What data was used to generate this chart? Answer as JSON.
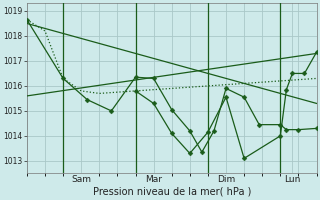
{
  "background_color": "#ceeaea",
  "grid_color": "#aac8c8",
  "line_color": "#1a5c1a",
  "xlabel": "Pression niveau de la mer( hPa )",
  "ylim": [
    1012.5,
    1019.3
  ],
  "yticks": [
    1013,
    1014,
    1015,
    1016,
    1017,
    1018,
    1019
  ],
  "xlim": [
    0,
    96
  ],
  "day_lines": [
    12,
    36,
    60,
    84
  ],
  "day_labels": [
    {
      "label": "Sam",
      "x": 18
    },
    {
      "label": "Mar",
      "x": 42
    },
    {
      "label": "Dim",
      "x": 66
    },
    {
      "label": "Lun",
      "x": 88
    }
  ],
  "line1": {
    "x": [
      0,
      6,
      12,
      18,
      24,
      30,
      36,
      42,
      48,
      54,
      60,
      66,
      72,
      78,
      84,
      90,
      96
    ],
    "y": [
      1018.65,
      1018.2,
      1016.3,
      1015.8,
      1015.7,
      1015.75,
      1015.8,
      1015.85,
      1015.9,
      1015.95,
      1016.0,
      1016.05,
      1016.1,
      1016.15,
      1016.2,
      1016.25,
      1016.3
    ],
    "linestyle": "dotted",
    "linewidth": 0.9,
    "marker": false
  },
  "line2": {
    "x": [
      0,
      96
    ],
    "y": [
      1018.5,
      1015.3
    ],
    "linestyle": "solid",
    "linewidth": 0.9,
    "marker": false
  },
  "line3": {
    "x": [
      0,
      96
    ],
    "y": [
      1015.6,
      1017.3
    ],
    "linestyle": "solid",
    "linewidth": 0.9,
    "marker": false
  },
  "line4": {
    "x": [
      0,
      12,
      20,
      28,
      36,
      42,
      48,
      54,
      58,
      62,
      66,
      72,
      77,
      84,
      86,
      90,
      96
    ],
    "y": [
      1018.65,
      1016.3,
      1015.45,
      1015.0,
      1016.35,
      1016.3,
      1015.05,
      1014.2,
      1013.35,
      1014.2,
      1015.9,
      1015.55,
      1014.45,
      1014.45,
      1014.25,
      1014.25,
      1014.3
    ],
    "linestyle": "solid",
    "linewidth": 0.9,
    "marker": true,
    "markersize": 2.5
  },
  "line5": {
    "x": [
      36,
      42,
      48,
      54,
      60,
      66,
      72,
      84,
      86,
      88,
      92,
      96
    ],
    "y": [
      1015.8,
      1015.3,
      1014.1,
      1013.3,
      1014.15,
      1015.55,
      1013.1,
      1014.0,
      1015.85,
      1016.5,
      1016.5,
      1017.35
    ],
    "linestyle": "solid",
    "linewidth": 0.9,
    "marker": true,
    "markersize": 2.5
  }
}
